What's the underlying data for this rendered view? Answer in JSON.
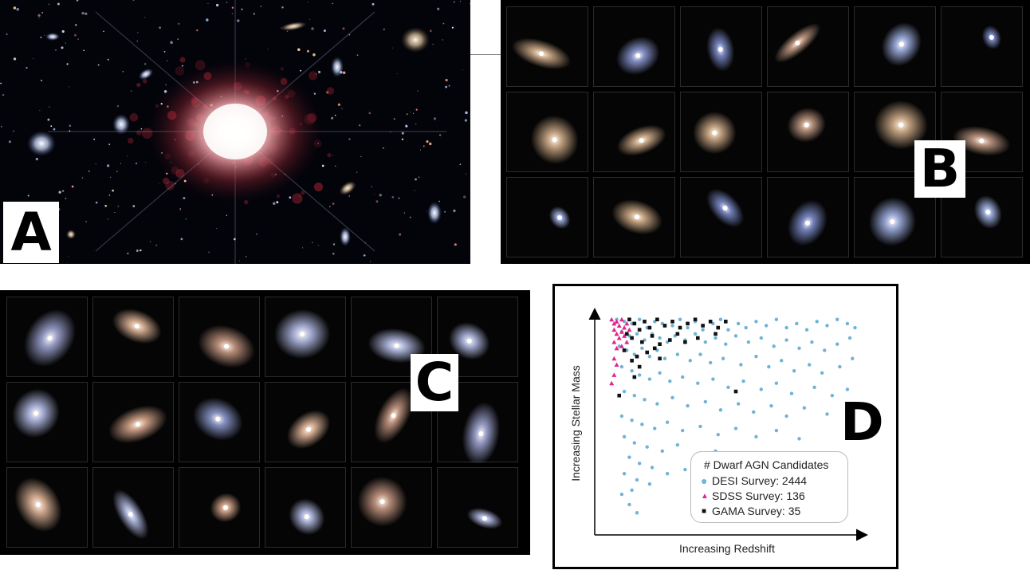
{
  "panels": {
    "a": {
      "letter": "A"
    },
    "b": {
      "letter": "B"
    },
    "c": {
      "letter": "C"
    },
    "d": {
      "letter": "D"
    }
  },
  "chart_data": {
    "type": "scatter",
    "xlabel": "Increasing Redshift",
    "ylabel": "Increasing Stellar Mass",
    "legend_title": "# Dwarf AGN Candidates",
    "legend_placement": "bottom-right",
    "grid": false,
    "xlim": [
      0,
      1
    ],
    "ylim": [
      0,
      1
    ],
    "series": [
      {
        "name": "DESI Survey: 2444",
        "marker": "circle",
        "color": "#6fb3d6",
        "points": [
          [
            0.03,
            0.97
          ],
          [
            0.06,
            0.96
          ],
          [
            0.09,
            0.95
          ],
          [
            0.12,
            0.97
          ],
          [
            0.15,
            0.93
          ],
          [
            0.18,
            0.96
          ],
          [
            0.21,
            0.95
          ],
          [
            0.25,
            0.94
          ],
          [
            0.28,
            0.97
          ],
          [
            0.31,
            0.93
          ],
          [
            0.34,
            0.96
          ],
          [
            0.37,
            0.92
          ],
          [
            0.41,
            0.95
          ],
          [
            0.44,
            0.97
          ],
          [
            0.47,
            0.92
          ],
          [
            0.51,
            0.95
          ],
          [
            0.54,
            0.93
          ],
          [
            0.58,
            0.96
          ],
          [
            0.62,
            0.94
          ],
          [
            0.66,
            0.97
          ],
          [
            0.7,
            0.93
          ],
          [
            0.74,
            0.95
          ],
          [
            0.78,
            0.92
          ],
          [
            0.82,
            0.96
          ],
          [
            0.86,
            0.94
          ],
          [
            0.9,
            0.97
          ],
          [
            0.94,
            0.95
          ],
          [
            0.97,
            0.93
          ],
          [
            0.05,
            0.91
          ],
          [
            0.08,
            0.89
          ],
          [
            0.11,
            0.9
          ],
          [
            0.14,
            0.87
          ],
          [
            0.17,
            0.9
          ],
          [
            0.2,
            0.88
          ],
          [
            0.23,
            0.86
          ],
          [
            0.26,
            0.89
          ],
          [
            0.3,
            0.87
          ],
          [
            0.34,
            0.9
          ],
          [
            0.38,
            0.86
          ],
          [
            0.42,
            0.88
          ],
          [
            0.46,
            0.85
          ],
          [
            0.5,
            0.89
          ],
          [
            0.55,
            0.86
          ],
          [
            0.6,
            0.88
          ],
          [
            0.65,
            0.84
          ],
          [
            0.7,
            0.87
          ],
          [
            0.75,
            0.83
          ],
          [
            0.8,
            0.86
          ],
          [
            0.85,
            0.82
          ],
          [
            0.9,
            0.85
          ],
          [
            0.95,
            0.88
          ],
          [
            0.04,
            0.84
          ],
          [
            0.07,
            0.82
          ],
          [
            0.1,
            0.8
          ],
          [
            0.13,
            0.83
          ],
          [
            0.16,
            0.79
          ],
          [
            0.19,
            0.82
          ],
          [
            0.22,
            0.78
          ],
          [
            0.27,
            0.8
          ],
          [
            0.32,
            0.77
          ],
          [
            0.36,
            0.8
          ],
          [
            0.4,
            0.76
          ],
          [
            0.45,
            0.78
          ],
          [
            0.52,
            0.75
          ],
          [
            0.58,
            0.79
          ],
          [
            0.63,
            0.74
          ],
          [
            0.68,
            0.77
          ],
          [
            0.73,
            0.72
          ],
          [
            0.79,
            0.75
          ],
          [
            0.84,
            0.71
          ],
          [
            0.91,
            0.74
          ],
          [
            0.96,
            0.78
          ],
          [
            0.05,
            0.74
          ],
          [
            0.09,
            0.72
          ],
          [
            0.12,
            0.7
          ],
          [
            0.16,
            0.68
          ],
          [
            0.2,
            0.71
          ],
          [
            0.24,
            0.67
          ],
          [
            0.29,
            0.69
          ],
          [
            0.35,
            0.66
          ],
          [
            0.41,
            0.68
          ],
          [
            0.47,
            0.64
          ],
          [
            0.53,
            0.67
          ],
          [
            0.6,
            0.63
          ],
          [
            0.66,
            0.66
          ],
          [
            0.72,
            0.61
          ],
          [
            0.81,
            0.64
          ],
          [
            0.88,
            0.6
          ],
          [
            0.94,
            0.63
          ],
          [
            0.06,
            0.62
          ],
          [
            0.1,
            0.6
          ],
          [
            0.14,
            0.58
          ],
          [
            0.19,
            0.56
          ],
          [
            0.25,
            0.59
          ],
          [
            0.31,
            0.55
          ],
          [
            0.38,
            0.57
          ],
          [
            0.44,
            0.53
          ],
          [
            0.51,
            0.56
          ],
          [
            0.57,
            0.52
          ],
          [
            0.64,
            0.55
          ],
          [
            0.7,
            0.5
          ],
          [
            0.77,
            0.54
          ],
          [
            0.86,
            0.51
          ],
          [
            0.93,
            0.55
          ],
          [
            0.05,
            0.5
          ],
          [
            0.09,
            0.48
          ],
          [
            0.13,
            0.46
          ],
          [
            0.18,
            0.44
          ],
          [
            0.23,
            0.47
          ],
          [
            0.29,
            0.43
          ],
          [
            0.36,
            0.45
          ],
          [
            0.43,
            0.41
          ],
          [
            0.5,
            0.44
          ],
          [
            0.58,
            0.4
          ],
          [
            0.66,
            0.43
          ],
          [
            0.75,
            0.39
          ],
          [
            0.06,
            0.4
          ],
          [
            0.1,
            0.37
          ],
          [
            0.15,
            0.35
          ],
          [
            0.21,
            0.33
          ],
          [
            0.27,
            0.36
          ],
          [
            0.34,
            0.31
          ],
          [
            0.42,
            0.33
          ],
          [
            0.53,
            0.3
          ],
          [
            0.08,
            0.3
          ],
          [
            0.12,
            0.27
          ],
          [
            0.17,
            0.25
          ],
          [
            0.23,
            0.22
          ],
          [
            0.3,
            0.24
          ],
          [
            0.06,
            0.22
          ],
          [
            0.11,
            0.19
          ],
          [
            0.16,
            0.17
          ],
          [
            0.09,
            0.14
          ],
          [
            0.05,
            0.12
          ],
          [
            0.08,
            0.07
          ],
          [
            0.11,
            0.03
          ]
        ]
      },
      {
        "name": "SDSS Survey: 136",
        "marker": "triangle",
        "color": "#e0258f",
        "points": [
          [
            0.01,
            0.97
          ],
          [
            0.02,
            0.95
          ],
          [
            0.03,
            0.96
          ],
          [
            0.04,
            0.94
          ],
          [
            0.05,
            0.97
          ],
          [
            0.06,
            0.93
          ],
          [
            0.02,
            0.92
          ],
          [
            0.03,
            0.9
          ],
          [
            0.05,
            0.91
          ],
          [
            0.07,
            0.95
          ],
          [
            0.08,
            0.92
          ],
          [
            0.04,
            0.88
          ],
          [
            0.06,
            0.89
          ],
          [
            0.02,
            0.86
          ],
          [
            0.07,
            0.86
          ],
          [
            0.03,
            0.83
          ],
          [
            0.05,
            0.84
          ],
          [
            0.02,
            0.78
          ],
          [
            0.03,
            0.75
          ],
          [
            0.01,
            0.66
          ],
          [
            0.02,
            0.7
          ]
        ]
      },
      {
        "name": "GAMA Survey: 35",
        "marker": "square",
        "color": "#111111",
        "points": [
          [
            0.08,
            0.97
          ],
          [
            0.1,
            0.95
          ],
          [
            0.12,
            0.92
          ],
          [
            0.14,
            0.96
          ],
          [
            0.16,
            0.93
          ],
          [
            0.19,
            0.97
          ],
          [
            0.22,
            0.94
          ],
          [
            0.25,
            0.96
          ],
          [
            0.28,
            0.93
          ],
          [
            0.31,
            0.95
          ],
          [
            0.34,
            0.97
          ],
          [
            0.37,
            0.94
          ],
          [
            0.4,
            0.96
          ],
          [
            0.43,
            0.93
          ],
          [
            0.46,
            0.96
          ],
          [
            0.09,
            0.88
          ],
          [
            0.13,
            0.86
          ],
          [
            0.17,
            0.89
          ],
          [
            0.2,
            0.85
          ],
          [
            0.24,
            0.87
          ],
          [
            0.3,
            0.86
          ],
          [
            0.06,
            0.82
          ],
          [
            0.11,
            0.79
          ],
          [
            0.15,
            0.81
          ],
          [
            0.2,
            0.78
          ],
          [
            0.5,
            0.62
          ],
          [
            0.12,
            0.74
          ],
          [
            0.04,
            0.6
          ],
          [
            0.1,
            0.69
          ],
          [
            0.35,
            0.88
          ],
          [
            0.42,
            0.9
          ],
          [
            0.18,
            0.83
          ],
          [
            0.27,
            0.9
          ],
          [
            0.07,
            0.9
          ],
          [
            0.09,
            0.77
          ]
        ]
      }
    ]
  }
}
